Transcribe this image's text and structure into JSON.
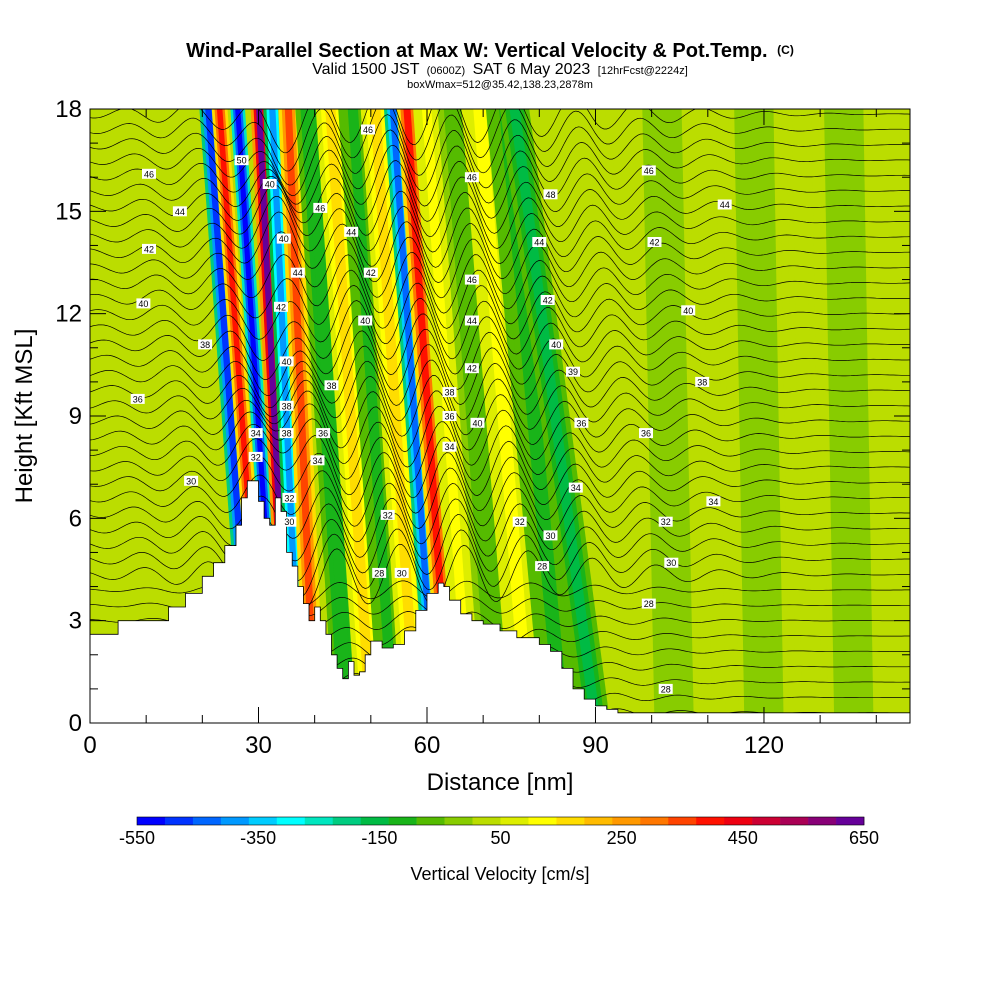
{
  "chart_data": {
    "type": "heatmap",
    "title": "Wind-Parallel Section at Max W: Vertical Velocity & Pot.Temp.",
    "title_mark": "(C)",
    "subtitle_main": "Valid 1500 JST",
    "subtitle_zulu": "(0600Z)",
    "subtitle_date": "SAT 6 May 2023",
    "subtitle_fcst": "[12hrFcst@2224z]",
    "subtitle_box": "boxWmax=512@35.42,138.23,2878m",
    "xlabel": "Distance [nm]",
    "ylabel": "Height [Kft MSL]",
    "xlim": [
      0,
      146
    ],
    "ylim": [
      0,
      18
    ],
    "x_ticks": [
      0,
      30,
      60,
      90,
      120
    ],
    "x_tick_labels": [
      "0",
      "30",
      "60",
      "90",
      "120"
    ],
    "y_ticks": [
      0,
      3,
      6,
      9,
      12,
      15,
      18
    ],
    "y_tick_labels": [
      "0",
      "3",
      "6",
      "9",
      "12",
      "15",
      "18"
    ],
    "terrain": [
      [
        0,
        2.6
      ],
      [
        5,
        2.6
      ],
      [
        5,
        3.0
      ],
      [
        12,
        3.0
      ],
      [
        14,
        3.4
      ],
      [
        17,
        3.8
      ],
      [
        20,
        4.3
      ],
      [
        22,
        4.7
      ],
      [
        24,
        5.2
      ],
      [
        26,
        5.8
      ],
      [
        27,
        6.6
      ],
      [
        28,
        7.1
      ],
      [
        29,
        7.1
      ],
      [
        30,
        6.5
      ],
      [
        31,
        6.0
      ],
      [
        32,
        5.8
      ],
      [
        33,
        6.6
      ],
      [
        34,
        6.2
      ],
      [
        35,
        5.0
      ],
      [
        36,
        4.6
      ],
      [
        37,
        4.0
      ],
      [
        38,
        3.5
      ],
      [
        39,
        3.0
      ],
      [
        40,
        3.4
      ],
      [
        41,
        3.0
      ],
      [
        42,
        2.6
      ],
      [
        43,
        2.0
      ],
      [
        44,
        1.6
      ],
      [
        45,
        1.3
      ],
      [
        46,
        1.8
      ],
      [
        47,
        1.4
      ],
      [
        48,
        1.5
      ],
      [
        49,
        2.0
      ],
      [
        50,
        2.4
      ],
      [
        52,
        2.2
      ],
      [
        54,
        2.3
      ],
      [
        56,
        2.7
      ],
      [
        58,
        3.3
      ],
      [
        60,
        3.8
      ],
      [
        62,
        4.1
      ],
      [
        63,
        4.0
      ],
      [
        64,
        3.6
      ],
      [
        66,
        3.2
      ],
      [
        68,
        3.0
      ],
      [
        70,
        2.9
      ],
      [
        73,
        2.7
      ],
      [
        76,
        2.5
      ],
      [
        80,
        2.3
      ],
      [
        82,
        2.1
      ],
      [
        84,
        1.6
      ],
      [
        86,
        1.0
      ],
      [
        88,
        0.7
      ],
      [
        90,
        0.5
      ],
      [
        92,
        0.4
      ],
      [
        94,
        0.3
      ],
      [
        100,
        0.3
      ],
      [
        146,
        0.3
      ]
    ],
    "velocity_bands": [
      {
        "x": 29,
        "lean": 0.44,
        "width": 1.6,
        "w": -500
      },
      {
        "x": 31,
        "lean": 0.44,
        "width": 1.4,
        "w": 400
      },
      {
        "x": 33.5,
        "lean": 0.4,
        "width": 1.3,
        "w": -550
      },
      {
        "x": 35.5,
        "lean": 0.3,
        "width": 1.5,
        "w": 620
      },
      {
        "x": 37.5,
        "lean": 0.28,
        "width": 1.6,
        "w": -400
      },
      {
        "x": 40,
        "lean": 0.26,
        "width": 1.8,
        "w": 330
      },
      {
        "x": 46,
        "lean": 0.38,
        "width": 2.6,
        "w": -120
      },
      {
        "x": 50,
        "lean": 0.4,
        "width": 2.6,
        "w": 150
      },
      {
        "x": 54,
        "lean": 0.4,
        "width": 2.6,
        "w": -110
      },
      {
        "x": 58,
        "lean": 0.4,
        "width": 2.6,
        "w": 150
      },
      {
        "x": 61.5,
        "lean": 0.42,
        "width": 1.6,
        "w": -430
      },
      {
        "x": 64,
        "lean": 0.42,
        "width": 1.8,
        "w": 380
      },
      {
        "x": 67.5,
        "lean": 0.42,
        "width": 2.4,
        "w": 120
      },
      {
        "x": 73,
        "lean": 0.44,
        "width": 3.2,
        "w": -80
      },
      {
        "x": 78,
        "lean": 0.48,
        "width": 3.2,
        "w": 120
      },
      {
        "x": 84,
        "lean": 0.55,
        "width": 3.6,
        "w": -100
      },
      {
        "x": 90,
        "lean": 0.8,
        "width": 2.6,
        "w": -150
      },
      {
        "x": 97,
        "lean": 0.15,
        "width": 4.0,
        "w": 40
      },
      {
        "x": 104,
        "lean": 0.12,
        "width": 3.5,
        "w": -40
      },
      {
        "x": 112,
        "lean": 0.1,
        "width": 3.5,
        "w": 40
      },
      {
        "x": 120,
        "lean": 0.1,
        "width": 3.5,
        "w": -40
      },
      {
        "x": 128,
        "lean": 0.1,
        "width": 3.5,
        "w": 40
      },
      {
        "x": 136,
        "lean": 0.1,
        "width": 3.5,
        "w": -40
      }
    ],
    "colorbar": {
      "label": "Vertical Velocity [cm/s]",
      "min": -550,
      "max": 650,
      "tick_labels": [
        {
          "v": -550,
          "label": "-550"
        },
        {
          "v": -350,
          "label": "-350"
        },
        {
          "v": -150,
          "label": "-150"
        },
        {
          "v": 50,
          "label": "50"
        },
        {
          "v": 250,
          "label": "250"
        },
        {
          "v": 450,
          "label": "450"
        },
        {
          "v": 650,
          "label": "650"
        }
      ],
      "colors": [
        "#0000ff",
        "#0033ff",
        "#0066ff",
        "#0099ff",
        "#00ccff",
        "#00ffff",
        "#00e6bf",
        "#00cc80",
        "#00bb44",
        "#19b419",
        "#55bb00",
        "#88cc00",
        "#bbdd00",
        "#ddee00",
        "#ffff00",
        "#ffdd00",
        "#ffbb00",
        "#ff9900",
        "#ff7700",
        "#ff4400",
        "#ff1100",
        "#ee0011",
        "#cc0033",
        "#aa0055",
        "#880077",
        "#660099"
      ]
    },
    "contour_labels": [
      {
        "x": 27,
        "y": 16.5,
        "t": "50"
      },
      {
        "x": 10.5,
        "y": 16.1,
        "t": "46"
      },
      {
        "x": 16,
        "y": 15.0,
        "t": "44"
      },
      {
        "x": 10.5,
        "y": 13.9,
        "t": "42"
      },
      {
        "x": 9.5,
        "y": 12.3,
        "t": "40"
      },
      {
        "x": 20.5,
        "y": 11.1,
        "t": "38"
      },
      {
        "x": 8.5,
        "y": 9.5,
        "t": "36"
      },
      {
        "x": 18,
        "y": 7.1,
        "t": "30"
      },
      {
        "x": 32,
        "y": 15.8,
        "t": "40"
      },
      {
        "x": 34.5,
        "y": 14.2,
        "t": "40"
      },
      {
        "x": 37,
        "y": 13.2,
        "t": "44"
      },
      {
        "x": 34,
        "y": 12.2,
        "t": "42"
      },
      {
        "x": 35,
        "y": 10.6,
        "t": "40"
      },
      {
        "x": 35,
        "y": 9.3,
        "t": "38"
      },
      {
        "x": 35,
        "y": 8.5,
        "t": "38"
      },
      {
        "x": 29.5,
        "y": 8.5,
        "t": "34"
      },
      {
        "x": 29.5,
        "y": 7.8,
        "t": "32"
      },
      {
        "x": 35.5,
        "y": 6.6,
        "t": "32"
      },
      {
        "x": 35.5,
        "y": 5.9,
        "t": "30"
      },
      {
        "x": 49.5,
        "y": 17.4,
        "t": "46"
      },
      {
        "x": 41,
        "y": 15.1,
        "t": "46"
      },
      {
        "x": 46.5,
        "y": 14.4,
        "t": "44"
      },
      {
        "x": 50,
        "y": 13.2,
        "t": "42"
      },
      {
        "x": 49,
        "y": 11.8,
        "t": "40"
      },
      {
        "x": 43,
        "y": 9.9,
        "t": "38"
      },
      {
        "x": 41.5,
        "y": 8.5,
        "t": "36"
      },
      {
        "x": 40.5,
        "y": 7.7,
        "t": "34"
      },
      {
        "x": 53,
        "y": 6.1,
        "t": "32"
      },
      {
        "x": 51.5,
        "y": 4.4,
        "t": "28"
      },
      {
        "x": 55.5,
        "y": 4.4,
        "t": "30"
      },
      {
        "x": 68,
        "y": 16.0,
        "t": "46"
      },
      {
        "x": 82,
        "y": 15.5,
        "t": "48"
      },
      {
        "x": 80,
        "y": 14.1,
        "t": "44"
      },
      {
        "x": 68,
        "y": 13.0,
        "t": "46"
      },
      {
        "x": 81.5,
        "y": 12.4,
        "t": "42"
      },
      {
        "x": 68,
        "y": 11.8,
        "t": "44"
      },
      {
        "x": 83,
        "y": 11.1,
        "t": "40"
      },
      {
        "x": 68,
        "y": 10.4,
        "t": "42"
      },
      {
        "x": 86,
        "y": 10.3,
        "t": "39"
      },
      {
        "x": 64,
        "y": 9.7,
        "t": "38"
      },
      {
        "x": 64,
        "y": 9.0,
        "t": "36"
      },
      {
        "x": 69,
        "y": 8.8,
        "t": "40"
      },
      {
        "x": 87.5,
        "y": 8.8,
        "t": "36"
      },
      {
        "x": 64,
        "y": 8.1,
        "t": "34"
      },
      {
        "x": 99.5,
        "y": 16.2,
        "t": "46"
      },
      {
        "x": 113,
        "y": 15.2,
        "t": "44"
      },
      {
        "x": 100.5,
        "y": 14.1,
        "t": "42"
      },
      {
        "x": 106.5,
        "y": 12.1,
        "t": "40"
      },
      {
        "x": 109,
        "y": 10.0,
        "t": "38"
      },
      {
        "x": 99,
        "y": 8.5,
        "t": "36"
      },
      {
        "x": 86.5,
        "y": 6.9,
        "t": "34"
      },
      {
        "x": 111,
        "y": 6.5,
        "t": "34"
      },
      {
        "x": 76.5,
        "y": 5.9,
        "t": "32"
      },
      {
        "x": 102.5,
        "y": 5.9,
        "t": "32"
      },
      {
        "x": 82,
        "y": 5.5,
        "t": "30"
      },
      {
        "x": 103.5,
        "y": 4.7,
        "t": "30"
      },
      {
        "x": 80.5,
        "y": 4.6,
        "t": "28"
      },
      {
        "x": 99.5,
        "y": 3.5,
        "t": "28"
      },
      {
        "x": 102.5,
        "y": 1.0,
        "t": "28"
      }
    ]
  }
}
